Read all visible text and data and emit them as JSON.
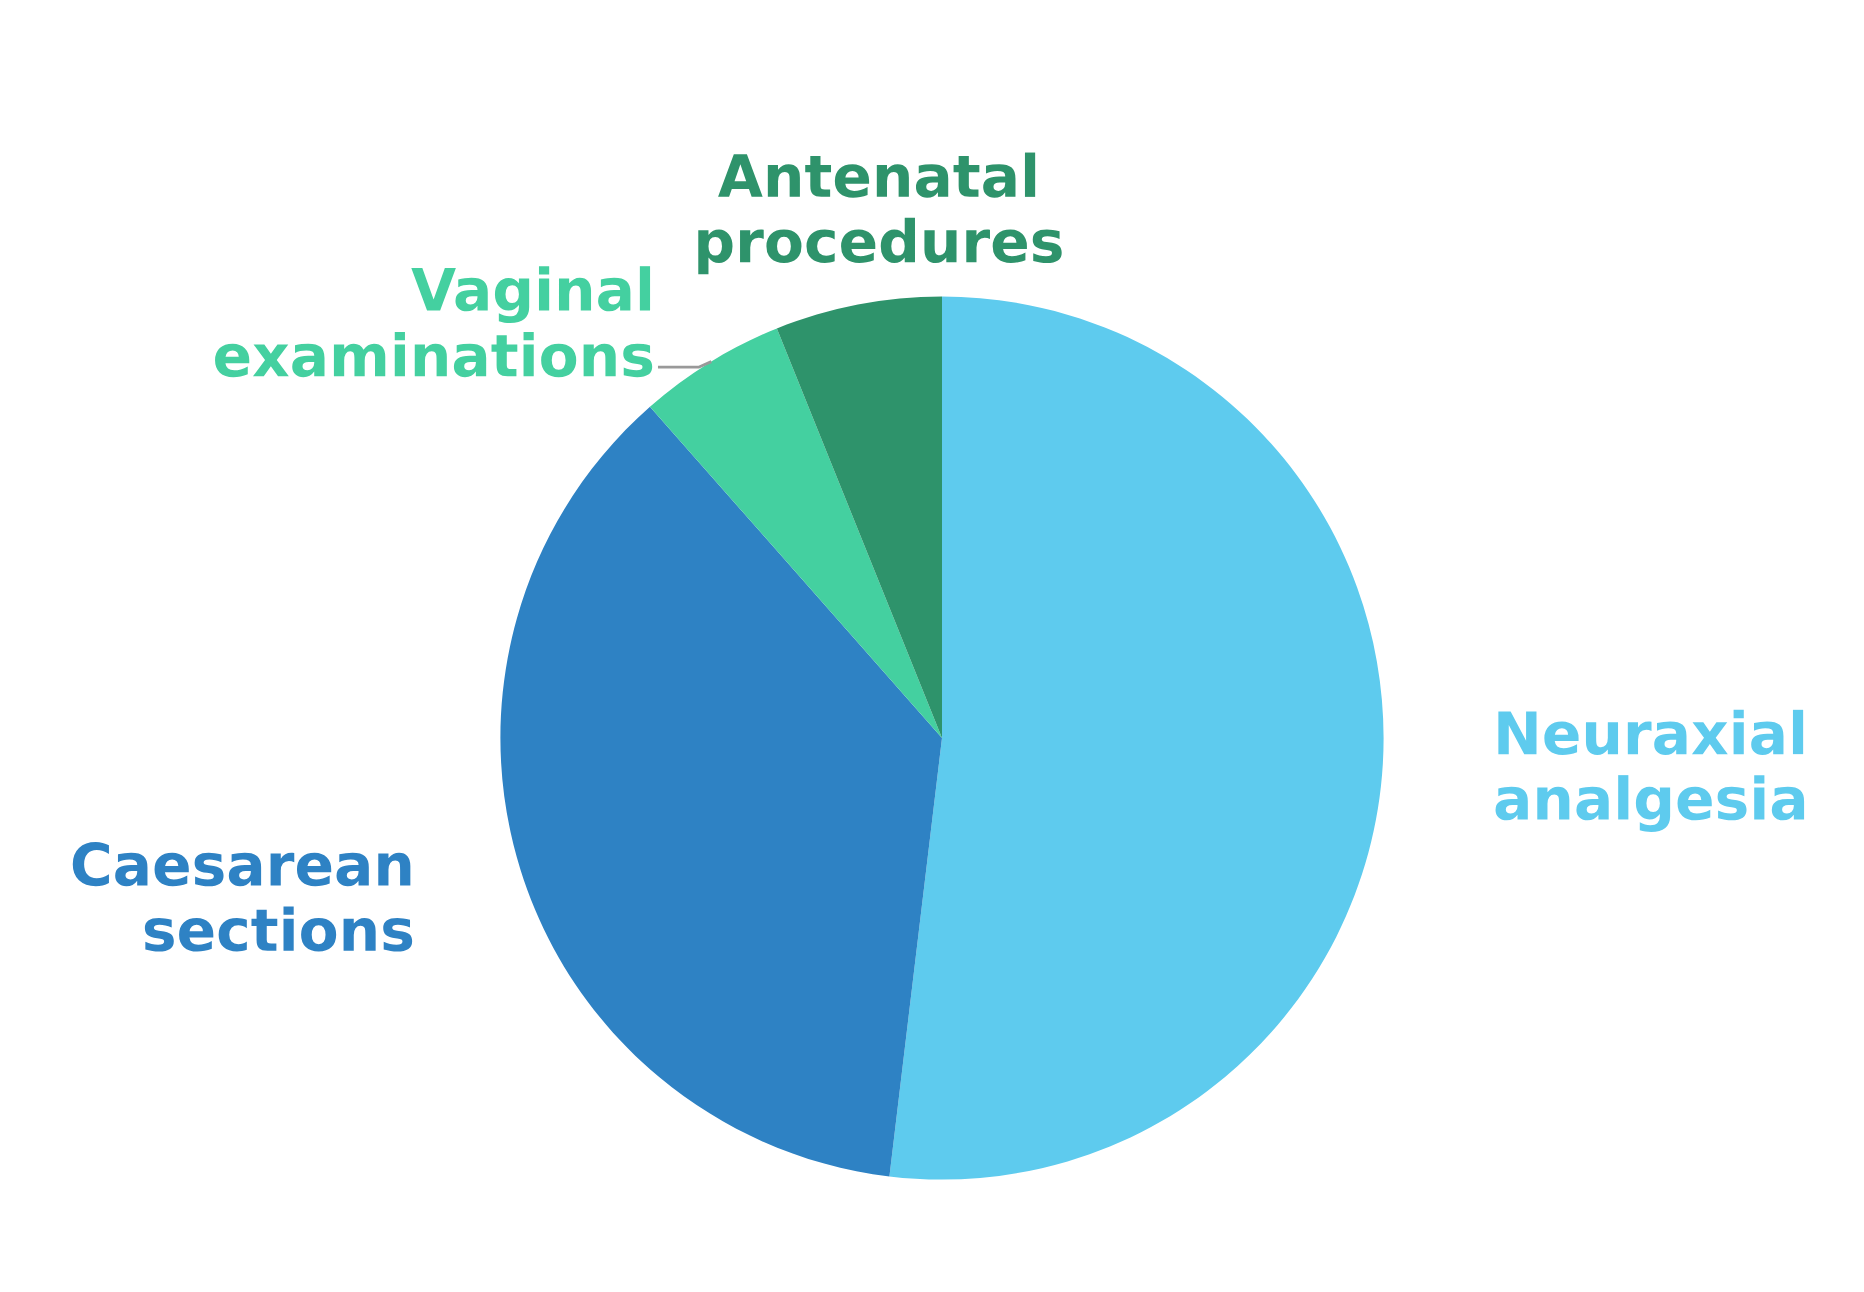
{
  "chart_data": {
    "type": "pie",
    "categories": [
      "Neuraxial\nanalgesia",
      "Caesarean\nsections",
      "Vaginal\nexaminations",
      "Antenatal\nprocedures"
    ],
    "values": [
      51.9,
      36.6,
      5.4,
      6.1
    ],
    "colors": [
      "#5ecbee",
      "#2e82c4",
      "#44d0a0",
      "#2e936b"
    ],
    "legend": false
  }
}
